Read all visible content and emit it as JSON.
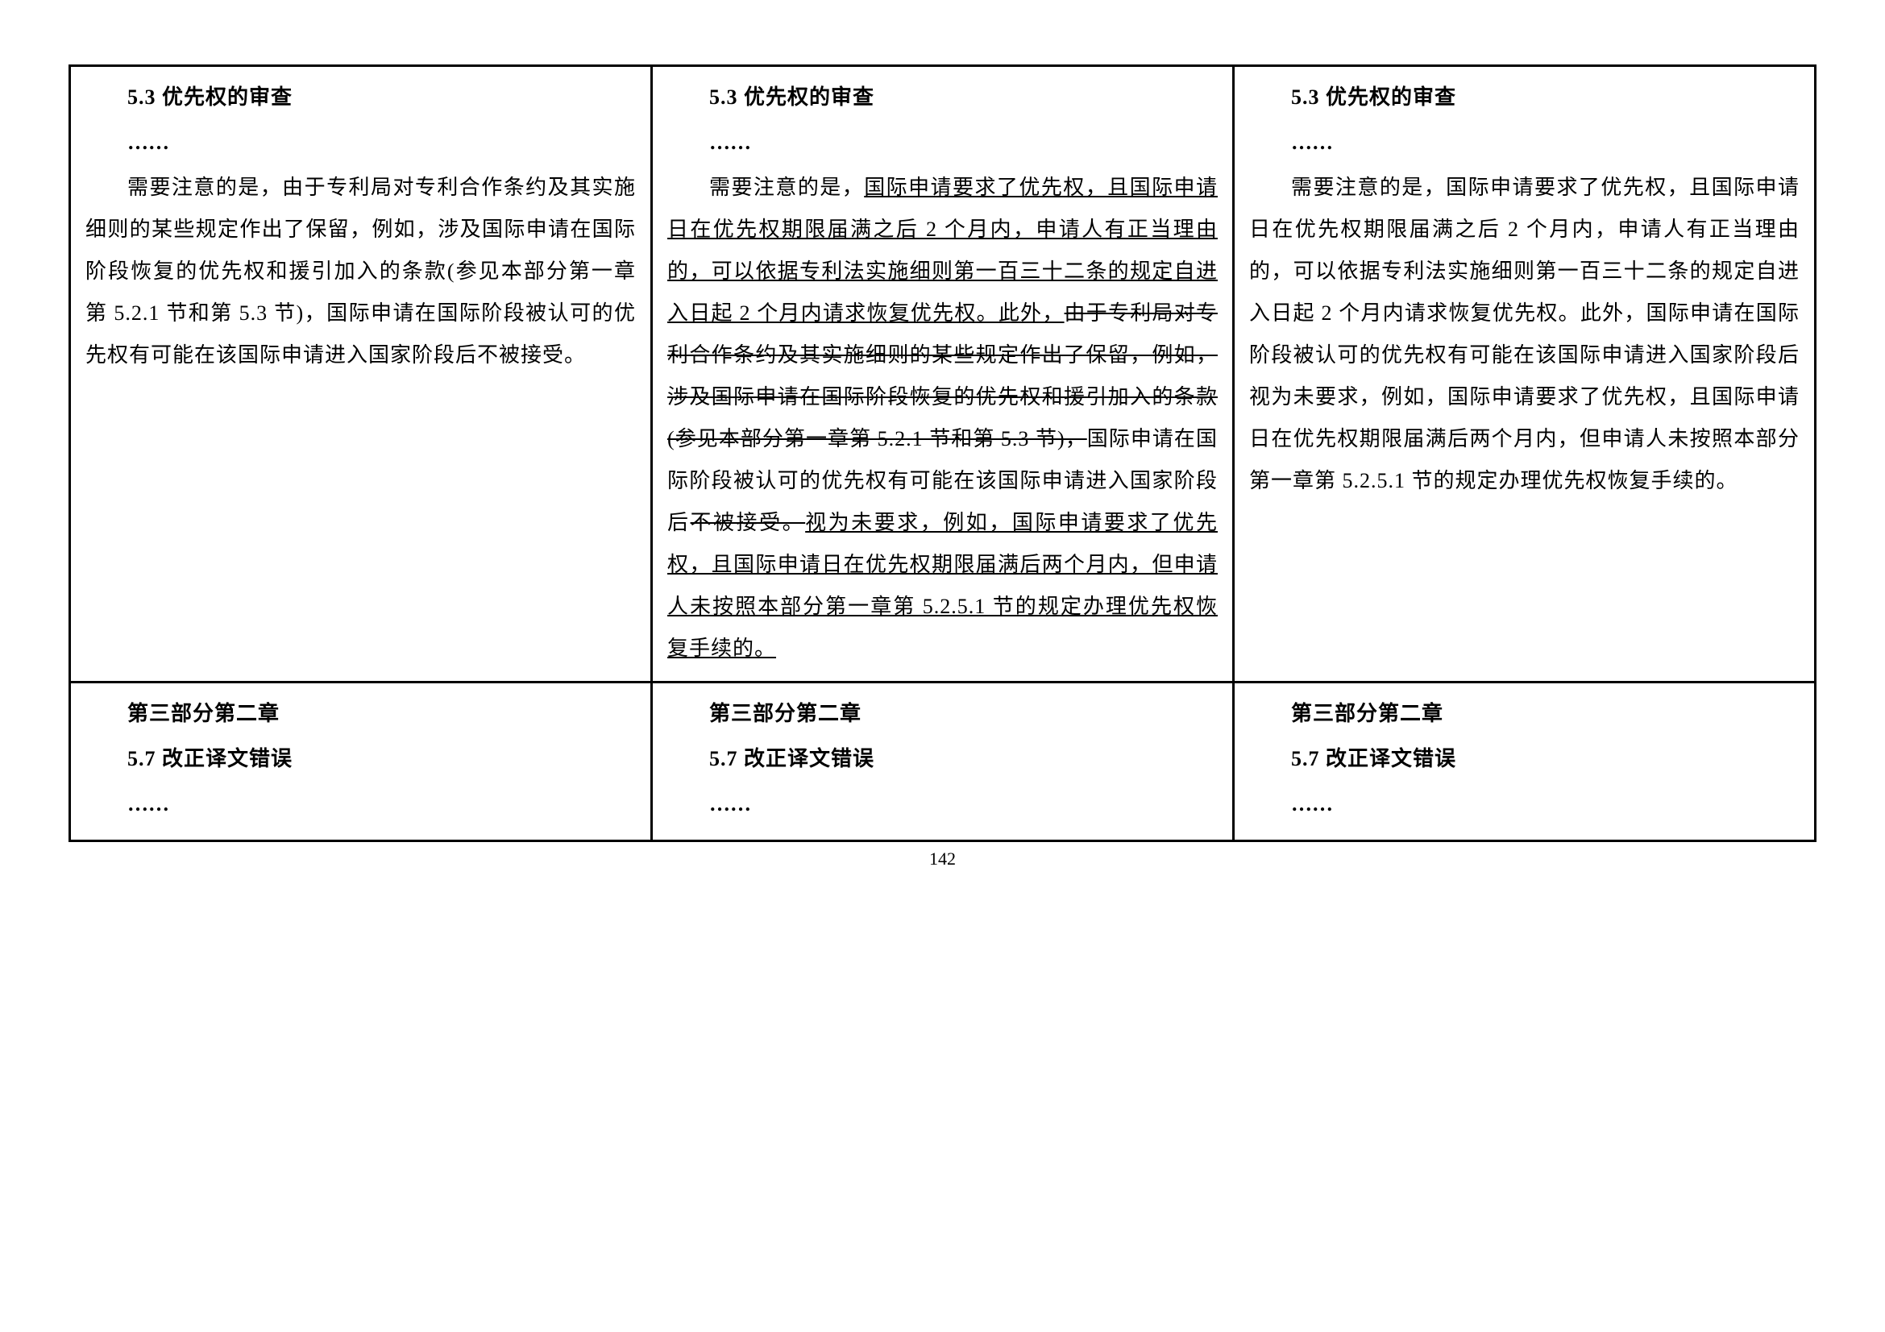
{
  "table": {
    "row1": {
      "col1": {
        "title": "5.3 优先权的审查",
        "dots": "……",
        "para": "需要注意的是，由于专利局对专利合作条约及其实施细则的某些规定作出了保留，例如，涉及国际申请在国际阶段恢复的优先权和援引加入的条款(参见本部分第一章第 5.2.1 节和第 5.3 节)，国际申请在国际阶段被认可的优先权有可能在该国际申请进入国家阶段后不被接受。"
      },
      "col2": {
        "title": "5.3 优先权的审查",
        "dots": "……",
        "pre": "需要注意的是，",
        "u1": "国际申请要求了优先权，且国际申请日在优先权期限届满之后 2 个月内，申请人有正当理由的，可以依据专利法实施细则第一百三十二条的规定自进入日起 2 个月内请求恢复优先权。此外，",
        "s1": "由于专利局对专利合作条约及其实施细则的某些规定作出了保留，例如，涉及国际申请在国际阶段恢复的优先权和援引加入的条款(参见本部分第一章第 5.2.1 节和第 5.3 节)，",
        "mid": "国际申请在国际阶段被认可的优先权有可能在该国际申请进入国家阶段后",
        "s2": "不被接受。",
        "u2": "视为未要求，例如，国际申请要求了优先权，且国际申请日在优先权期限届满后两个月内，但申请人未按照本部分第一章第 5.2.5.1 节的规定办理优先权恢复手续的。"
      },
      "col3": {
        "title": "5.3 优先权的审查",
        "dots": "……",
        "para": "需要注意的是，国际申请要求了优先权，且国际申请日在优先权期限届满之后 2 个月内，申请人有正当理由的，可以依据专利法实施细则第一百三十二条的规定自进入日起 2 个月内请求恢复优先权。此外，国际申请在国际阶段被认可的优先权有可能在该国际申请进入国家阶段后视为未要求，例如，国际申请要求了优先权，且国际申请日在优先权期限届满后两个月内，但申请人未按照本部分第一章第 5.2.5.1 节的规定办理优先权恢复手续的。"
      }
    },
    "row2": {
      "col1": {
        "part": "第三部分第二章",
        "title": "5.7 改正译文错误",
        "dots": "……"
      },
      "col2": {
        "part": "第三部分第二章",
        "title": "5.7 改正译文错误",
        "dots": "……"
      },
      "col3": {
        "part": "第三部分第二章",
        "title": "5.7 改正译文错误",
        "dots": "……"
      }
    }
  },
  "page_number": "142",
  "style": {
    "background": "#ffffff",
    "border_color": "#000000",
    "font_size": 26,
    "line_height": 2.0
  }
}
